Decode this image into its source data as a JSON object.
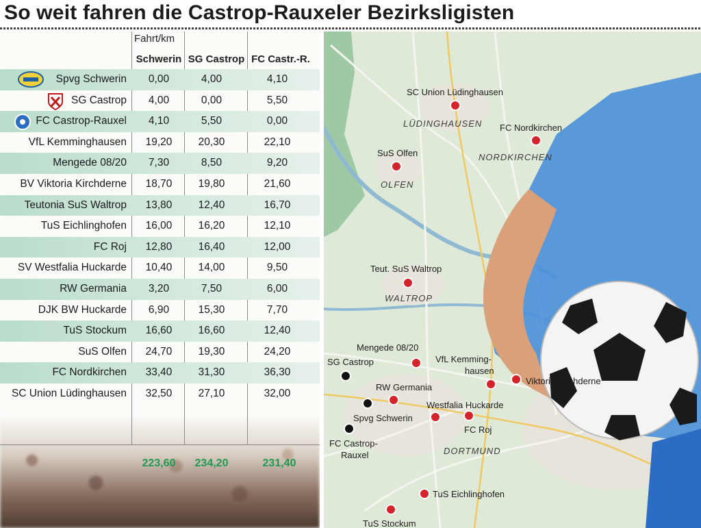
{
  "title": "So weit fahren die Castrop-Rauxeler Bezirksligisten",
  "table": {
    "unit_header": "Fahrt/km",
    "columns": [
      "Schwerin",
      "SG Castrop",
      "FC Castr.-R."
    ],
    "rows": [
      {
        "team": "Spvg Schwerin",
        "values": [
          "0,00",
          "4,00",
          "4,10"
        ]
      },
      {
        "team": "SG Castrop",
        "values": [
          "4,00",
          "0,00",
          "5,50"
        ]
      },
      {
        "team": "FC Castrop-Rauxel",
        "values": [
          "4,10",
          "5,50",
          "0,00"
        ]
      },
      {
        "team": "VfL Kemminghausen",
        "values": [
          "19,20",
          "20,30",
          "22,10"
        ]
      },
      {
        "team": "Mengede 08/20",
        "values": [
          "7,30",
          "8,50",
          "9,20"
        ]
      },
      {
        "team": "BV Viktoria Kirchderne",
        "values": [
          "18,70",
          "19,80",
          "21,60"
        ]
      },
      {
        "team": "Teutonia SuS Waltrop",
        "values": [
          "13,80",
          "12,40",
          "16,70"
        ]
      },
      {
        "team": "TuS Eichlinghofen",
        "values": [
          "16,00",
          "16,20",
          "12,10"
        ]
      },
      {
        "team": "FC Roj",
        "values": [
          "12,80",
          "16,40",
          "12,00"
        ]
      },
      {
        "team": "SV Westfalia Huckarde",
        "values": [
          "10,40",
          "14,00",
          "9,50"
        ]
      },
      {
        "team": "RW Germania",
        "values": [
          "3,20",
          "7,50",
          "6,00"
        ]
      },
      {
        "team": "DJK BW Huckarde",
        "values": [
          "6,90",
          "15,30",
          "7,70"
        ]
      },
      {
        "team": "TuS Stockum",
        "values": [
          "16,60",
          "16,60",
          "12,40"
        ]
      },
      {
        "team": "SuS Olfen",
        "values": [
          "24,70",
          "19,30",
          "24,20"
        ]
      },
      {
        "team": "FC Nordkirchen",
        "values": [
          "33,40",
          "31,30",
          "36,30"
        ]
      },
      {
        "team": "SC Union Lüdinghausen",
        "values": [
          "32,50",
          "27,10",
          "32,00"
        ]
      }
    ],
    "totals": [
      "223,60",
      "234,20",
      "231,40"
    ]
  },
  "map": {
    "regions": [
      "LÜDINGHAUSEN",
      "NORDKIRCHEN",
      "OLFEN",
      "WALTROP",
      "DORTMUND"
    ],
    "places": [
      {
        "label": "SC Union Lüdinghausen",
        "color": "red"
      },
      {
        "label": "FC Nordkirchen",
        "color": "red"
      },
      {
        "label": "SuS Olfen",
        "color": "red"
      },
      {
        "label": "Teut. SuS Waltrop",
        "color": "red"
      },
      {
        "label": "Mengede 08/20",
        "color": "red"
      },
      {
        "label": "SG Castrop",
        "color": "black"
      },
      {
        "label": "VfL Kemming-",
        "label2": "hausen",
        "color": "red"
      },
      {
        "label": "Viktoria Kirchderne",
        "color": "red"
      },
      {
        "label": "RW Germania",
        "color": "red"
      },
      {
        "label": "Westfalia Huckarde",
        "color": "red"
      },
      {
        "label": "Spvg Schwerin",
        "color": "black"
      },
      {
        "label": "FC Roj",
        "color": "red"
      },
      {
        "label": "FC Castrop-",
        "label2": "Rauxel",
        "color": "black"
      },
      {
        "label": "TuS Eichlinghofen",
        "color": "red"
      },
      {
        "label": "TuS Stockum",
        "color": "red"
      }
    ]
  },
  "colors": {
    "row_green": "#b9dccb",
    "totals_green": "#1e9a4f",
    "marker_red": "#d5232b",
    "marker_black": "#111111"
  }
}
